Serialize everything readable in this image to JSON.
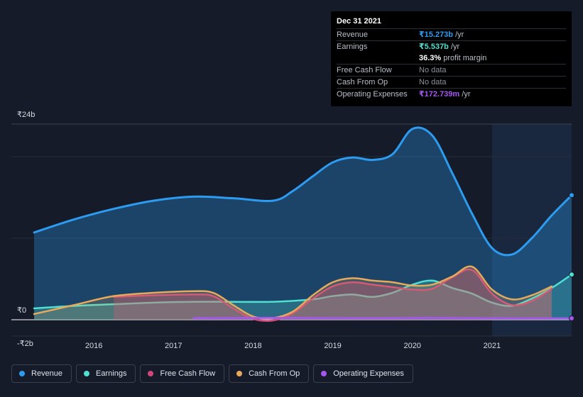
{
  "tooltip": {
    "date": "Dec 31 2021",
    "rows": [
      {
        "label": "Revenue",
        "value": "₹15.273b",
        "unit": " /yr",
        "color": "#2d9cf0"
      },
      {
        "label": "Earnings",
        "value": "₹5.537b",
        "unit": " /yr",
        "color": "#4fe0cf"
      },
      {
        "label": "",
        "value": "36.3%",
        "unit": " profit margin",
        "color": "#ffffff"
      },
      {
        "label": "Free Cash Flow",
        "value": "No data",
        "unit": "",
        "color": ""
      },
      {
        "label": "Cash From Op",
        "value": "No data",
        "unit": "",
        "color": ""
      },
      {
        "label": "Operating Expenses",
        "value": "₹172.739m",
        "unit": " /yr",
        "color": "#a657f0"
      }
    ]
  },
  "legend": [
    {
      "label": "Revenue",
      "color": "#2d9cf0"
    },
    {
      "label": "Earnings",
      "color": "#4fe0cf"
    },
    {
      "label": "Free Cash Flow",
      "color": "#d1477c"
    },
    {
      "label": "Cash From Op",
      "color": "#e8aa5a"
    },
    {
      "label": "Operating Expenses",
      "color": "#a657f0"
    }
  ],
  "chart_data": {
    "type": "area",
    "y_tick_labels": [
      "₹24b",
      "₹0",
      "-₹2b"
    ],
    "ylim": [
      -2,
      24
    ],
    "xlim": [
      2015.25,
      2022.0
    ],
    "x_ticks": [
      2016,
      2017,
      2018,
      2019,
      2020,
      2021
    ],
    "x_tick_labels": [
      "2016",
      "2017",
      "2018",
      "2019",
      "2020",
      "2021"
    ],
    "highlight_start": 2021.0,
    "series": [
      {
        "name": "Revenue",
        "color": "#2d9cf0",
        "x": [
          2015.25,
          2015.75,
          2016.25,
          2016.75,
          2017.25,
          2017.75,
          2018.25,
          2018.5,
          2018.75,
          2019.0,
          2019.25,
          2019.5,
          2019.75,
          2020.0,
          2020.25,
          2020.5,
          2020.75,
          2021.0,
          2021.25,
          2021.5,
          2021.75,
          2022.0
        ],
        "y": [
          10.7,
          12.3,
          13.6,
          14.6,
          15.1,
          14.9,
          14.6,
          15.8,
          17.6,
          19.3,
          19.9,
          19.6,
          20.3,
          23.4,
          22.6,
          18.0,
          13.0,
          8.8,
          8.0,
          10.0,
          12.8,
          15.27
        ]
      },
      {
        "name": "Earnings",
        "color": "#4fe0cf",
        "x": [
          2015.25,
          2015.75,
          2016.25,
          2016.75,
          2017.25,
          2017.75,
          2018.25,
          2018.75,
          2019.0,
          2019.25,
          2019.5,
          2019.75,
          2020.0,
          2020.25,
          2020.5,
          2020.75,
          2021.0,
          2021.25,
          2021.5,
          2021.75,
          2022.0
        ],
        "y": [
          1.4,
          1.7,
          1.9,
          2.1,
          2.2,
          2.2,
          2.2,
          2.5,
          2.9,
          3.1,
          2.8,
          3.3,
          4.3,
          4.8,
          3.9,
          3.2,
          2.1,
          1.7,
          2.6,
          3.9,
          5.54
        ]
      },
      {
        "name": "Free Cash Flow",
        "color": "#d1477c",
        "x": [
          2016.25,
          2016.75,
          2017.25,
          2017.5,
          2017.75,
          2018.0,
          2018.25,
          2018.5,
          2018.75,
          2019.0,
          2019.25,
          2019.5,
          2019.75,
          2020.0,
          2020.25,
          2020.5,
          2020.75,
          2021.0,
          2021.25,
          2021.5,
          2021.75
        ],
        "y": [
          2.8,
          3.0,
          3.1,
          2.9,
          1.4,
          0.1,
          -0.1,
          0.8,
          2.6,
          4.1,
          4.6,
          4.3,
          4.0,
          3.7,
          3.8,
          5.2,
          6.1,
          3.2,
          1.8,
          2.3,
          3.8
        ]
      },
      {
        "name": "Cash From Op",
        "color": "#e8aa5a",
        "x": [
          2015.25,
          2015.75,
          2016.25,
          2016.75,
          2017.25,
          2017.5,
          2017.75,
          2018.0,
          2018.25,
          2018.5,
          2018.75,
          2019.0,
          2019.25,
          2019.5,
          2019.75,
          2020.0,
          2020.25,
          2020.5,
          2020.75,
          2021.0,
          2021.25,
          2021.5,
          2021.75
        ],
        "y": [
          0.7,
          1.8,
          2.9,
          3.3,
          3.5,
          3.3,
          1.8,
          0.4,
          0.2,
          1.0,
          3.0,
          4.6,
          5.1,
          4.8,
          4.6,
          4.2,
          4.3,
          5.3,
          6.5,
          3.7,
          2.5,
          3.0,
          4.1
        ]
      },
      {
        "name": "Operating Expenses",
        "color": "#a657f0",
        "x": [
          2017.25,
          2017.75,
          2018.25,
          2018.75,
          2019.25,
          2019.75,
          2020.25,
          2020.75,
          2021.25,
          2021.75,
          2022.0
        ],
        "y": [
          0.2,
          0.22,
          0.24,
          0.22,
          0.2,
          0.2,
          0.24,
          0.2,
          0.18,
          0.17,
          0.17
        ]
      }
    ]
  }
}
